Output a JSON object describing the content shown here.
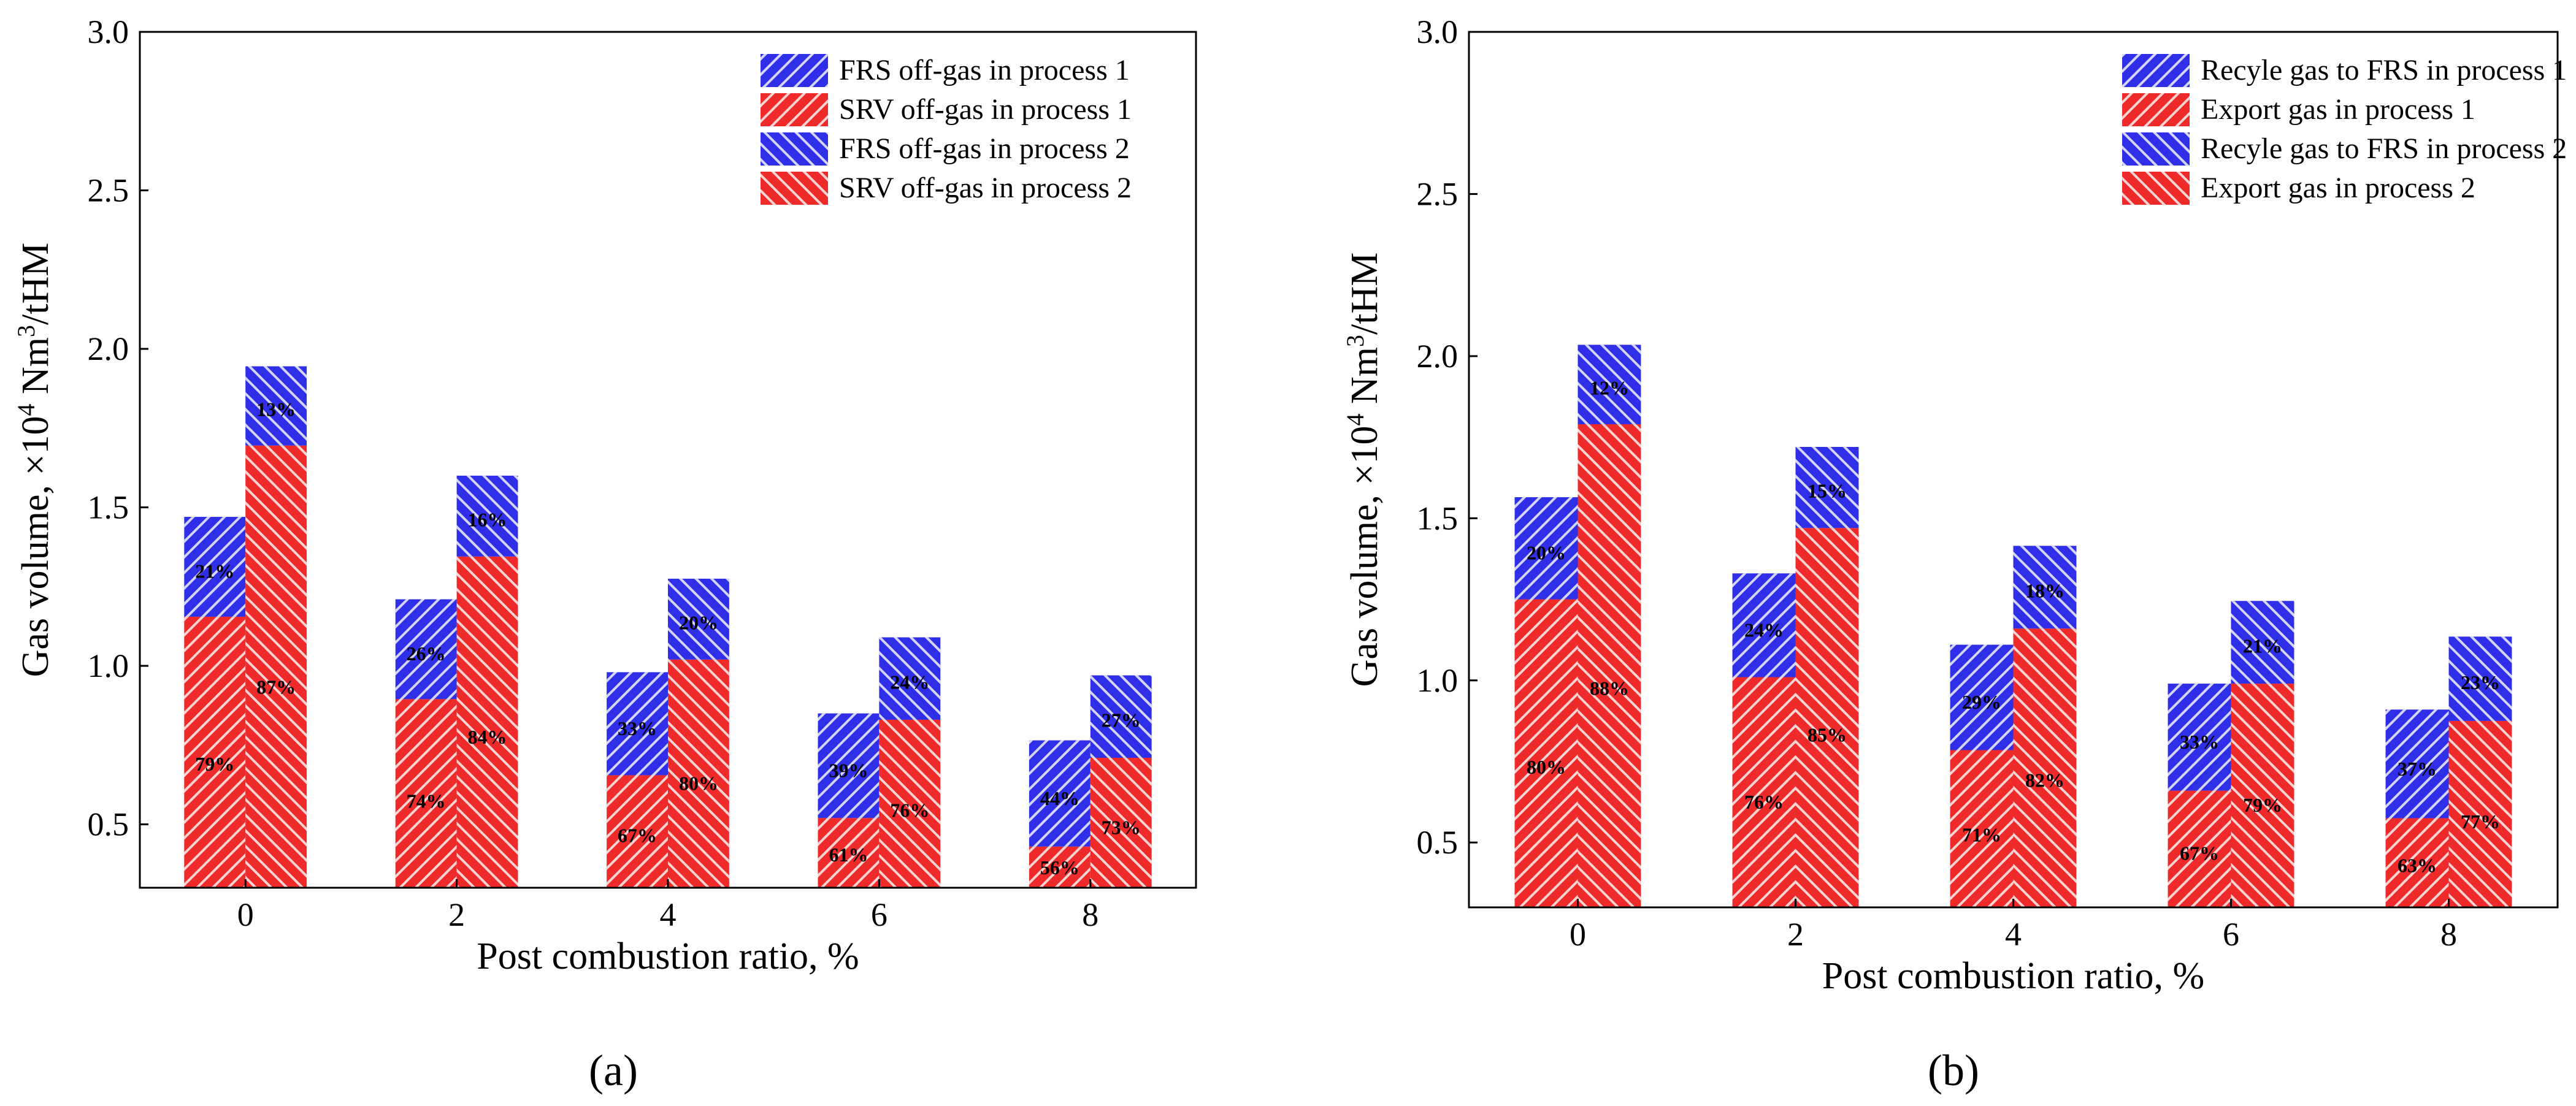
{
  "chart_data": [
    {
      "id": "a",
      "type": "bar",
      "panel_label": "(a)",
      "categories": [
        "0",
        "2",
        "4",
        "6",
        "8"
      ],
      "xlabel": "Post combustion ratio,  %",
      "ylabel_main": "Gas volume, ×10",
      "ylabel_exp": "4",
      "ylabel_mid": " Nm",
      "ylabel_exp2": "3",
      "ylabel_end": "/tHM",
      "ylim": [
        0.3,
        3.0
      ],
      "yticks": [
        "0.5",
        "1.0",
        "1.5",
        "2.0",
        "2.5",
        "3.0"
      ],
      "ytick_values": [
        0.5,
        1.0,
        1.5,
        2.0,
        2.5,
        3.0
      ],
      "legend": [
        {
          "label": "FRS off-gas in process 1",
          "color": "#2f2fe8",
          "hatch": "dense"
        },
        {
          "label": "SRV off-gas in process 1",
          "color": "#ee2a2a",
          "hatch": "dense"
        },
        {
          "label": "FRS off-gas in process 2",
          "color": "#2f2fe8",
          "hatch": "light"
        },
        {
          "label": "SRV off-gas in process 2",
          "color": "#ee2a2a",
          "hatch": "light"
        }
      ],
      "process1": {
        "totals": [
          1.47,
          1.21,
          0.98,
          0.85,
          0.765
        ],
        "bottom": [
          1.155,
          0.895,
          0.655,
          0.52,
          0.43
        ],
        "bottom_pct": [
          "79%",
          "74%",
          "67%",
          "61%",
          "56%"
        ],
        "top_pct": [
          "21%",
          "26%",
          "33%",
          "39%",
          "44%"
        ]
      },
      "process2": {
        "totals": [
          1.945,
          1.6,
          1.275,
          1.09,
          0.97
        ],
        "bottom": [
          1.695,
          1.345,
          1.02,
          0.83,
          0.71
        ],
        "bottom_pct": [
          "87%",
          "84%",
          "80%",
          "76%",
          "73%"
        ],
        "top_pct": [
          "13%",
          "16%",
          "20%",
          "24%",
          "27%"
        ]
      }
    },
    {
      "id": "b",
      "type": "bar",
      "panel_label": "(b)",
      "categories": [
        "0",
        "2",
        "4",
        "6",
        "8"
      ],
      "xlabel": "Post combustion ratio,  %",
      "ylabel_main": "Gas volume, ×10",
      "ylabel_exp": "4",
      "ylabel_mid": " Nm",
      "ylabel_exp2": "3",
      "ylabel_end": "/tHM",
      "ylim": [
        0.3,
        3.0
      ],
      "yticks": [
        "0.5",
        "1.0",
        "1.5",
        "2.0",
        "2.5",
        "3.0"
      ],
      "ytick_values": [
        0.5,
        1.0,
        1.5,
        2.0,
        2.5,
        3.0
      ],
      "legend": [
        {
          "label": "Recyle gas to FRS in process 1",
          "color": "#2f2fe8",
          "hatch": "dense"
        },
        {
          "label": "Export gas in process 1",
          "color": "#ee2a2a",
          "hatch": "dense"
        },
        {
          "label": "Recyle gas to FRS in process 2",
          "color": "#2f2fe8",
          "hatch": "light"
        },
        {
          "label": "Export gas in process 2",
          "color": "#ee2a2a",
          "hatch": "light"
        }
      ],
      "process1": {
        "totals": [
          1.565,
          1.33,
          1.11,
          0.99,
          0.91
        ],
        "bottom": [
          1.25,
          1.01,
          0.785,
          0.66,
          0.575
        ],
        "bottom_pct": [
          "80%",
          "76%",
          "71%",
          "67%",
          "63%"
        ],
        "top_pct": [
          "20%",
          "24%",
          "29%",
          "33%",
          "37%"
        ]
      },
      "process2": {
        "totals": [
          2.035,
          1.72,
          1.415,
          1.245,
          1.135
        ],
        "bottom": [
          1.79,
          1.47,
          1.16,
          0.99,
          0.875
        ],
        "bottom_pct": [
          "88%",
          "85%",
          "82%",
          "79%",
          "77%"
        ],
        "top_pct": [
          "12%",
          "15%",
          "18%",
          "21%",
          "23%"
        ]
      }
    }
  ]
}
